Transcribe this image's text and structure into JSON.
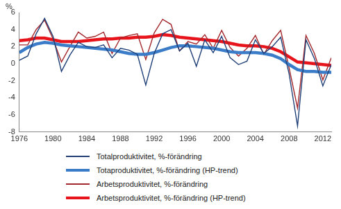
{
  "chart_data": {
    "type": "line",
    "ylabel": "%",
    "x": [
      1976,
      1977,
      1978,
      1979,
      1980,
      1981,
      1982,
      1983,
      1984,
      1985,
      1986,
      1987,
      1988,
      1989,
      1990,
      1991,
      1992,
      1993,
      1994,
      1995,
      1996,
      1997,
      1998,
      1999,
      2000,
      2001,
      2002,
      2003,
      2004,
      2005,
      2006,
      2007,
      2008,
      2009,
      2010,
      2011,
      2012,
      2013
    ],
    "xlim": [
      1976,
      2013
    ],
    "xticks": [
      1976,
      1980,
      1984,
      1988,
      1992,
      1996,
      2000,
      2004,
      2008,
      2012
    ],
    "ylim": [
      -8,
      6
    ],
    "yticks": [
      -8,
      -6,
      -4,
      -2,
      0,
      2,
      4,
      6
    ],
    "grid": false,
    "legend": "bottom",
    "series": [
      {
        "name": "Totalproduktivitet, %-förändring",
        "color": "#1f3f77",
        "line_style": "thin",
        "values": [
          0.4,
          0.9,
          3.5,
          5.3,
          3.2,
          -0.9,
          1.0,
          2.5,
          2.0,
          1.9,
          2.2,
          0.7,
          1.8,
          1.6,
          1.1,
          -2.5,
          1.2,
          3.5,
          4.0,
          1.5,
          2.4,
          -0.3,
          2.8,
          1.3,
          3.2,
          0.7,
          -0.1,
          0.3,
          2.8,
          1.2,
          2.0,
          3.1,
          -1.2,
          -7.3,
          2.8,
          0.6,
          -2.6,
          -0.1
        ]
      },
      {
        "name": "Totaproduktivitet, %-förändring (HP-trend)",
        "color": "#3a7cc8",
        "line_style": "thick",
        "values": [
          1.3,
          1.9,
          2.3,
          2.5,
          2.4,
          2.2,
          2.1,
          2.0,
          1.9,
          1.8,
          1.7,
          1.6,
          1.4,
          1.2,
          1.1,
          1.1,
          1.3,
          1.6,
          1.9,
          2.1,
          2.1,
          2.0,
          1.9,
          1.8,
          1.6,
          1.4,
          1.3,
          1.3,
          1.3,
          1.2,
          1.0,
          0.6,
          -0.1,
          -0.7,
          -0.9,
          -0.9,
          -1.0,
          -1.0
        ]
      },
      {
        "name": "Arbetsproduktivitet, %-förändring",
        "color": "#a3262a",
        "line_style": "thin",
        "values": [
          2.2,
          2.2,
          4.0,
          5.1,
          2.9,
          0.2,
          2.0,
          3.7,
          3.0,
          3.2,
          3.7,
          1.2,
          3.0,
          3.3,
          3.5,
          0.5,
          3.6,
          5.2,
          4.6,
          1.5,
          2.6,
          2.3,
          3.4,
          1.8,
          3.9,
          1.9,
          0.9,
          1.8,
          3.3,
          1.1,
          2.7,
          3.9,
          -0.5,
          -5.2,
          3.3,
          1.2,
          -1.9,
          0.7
        ]
      },
      {
        "name": "Arbetsproduktivitet, %-förändring (HP-trend)",
        "color": "#e8141c",
        "line_style": "thick",
        "values": [
          2.7,
          2.8,
          3.0,
          3.0,
          2.8,
          2.6,
          2.6,
          2.6,
          2.7,
          2.8,
          2.9,
          2.9,
          3.0,
          3.0,
          3.1,
          3.1,
          3.2,
          3.4,
          3.3,
          3.1,
          3.0,
          2.9,
          2.8,
          2.7,
          2.6,
          2.4,
          2.2,
          2.1,
          2.1,
          2.0,
          1.8,
          1.4,
          0.8,
          0.2,
          0.1,
          0.0,
          -0.1,
          -0.2
        ]
      }
    ]
  }
}
